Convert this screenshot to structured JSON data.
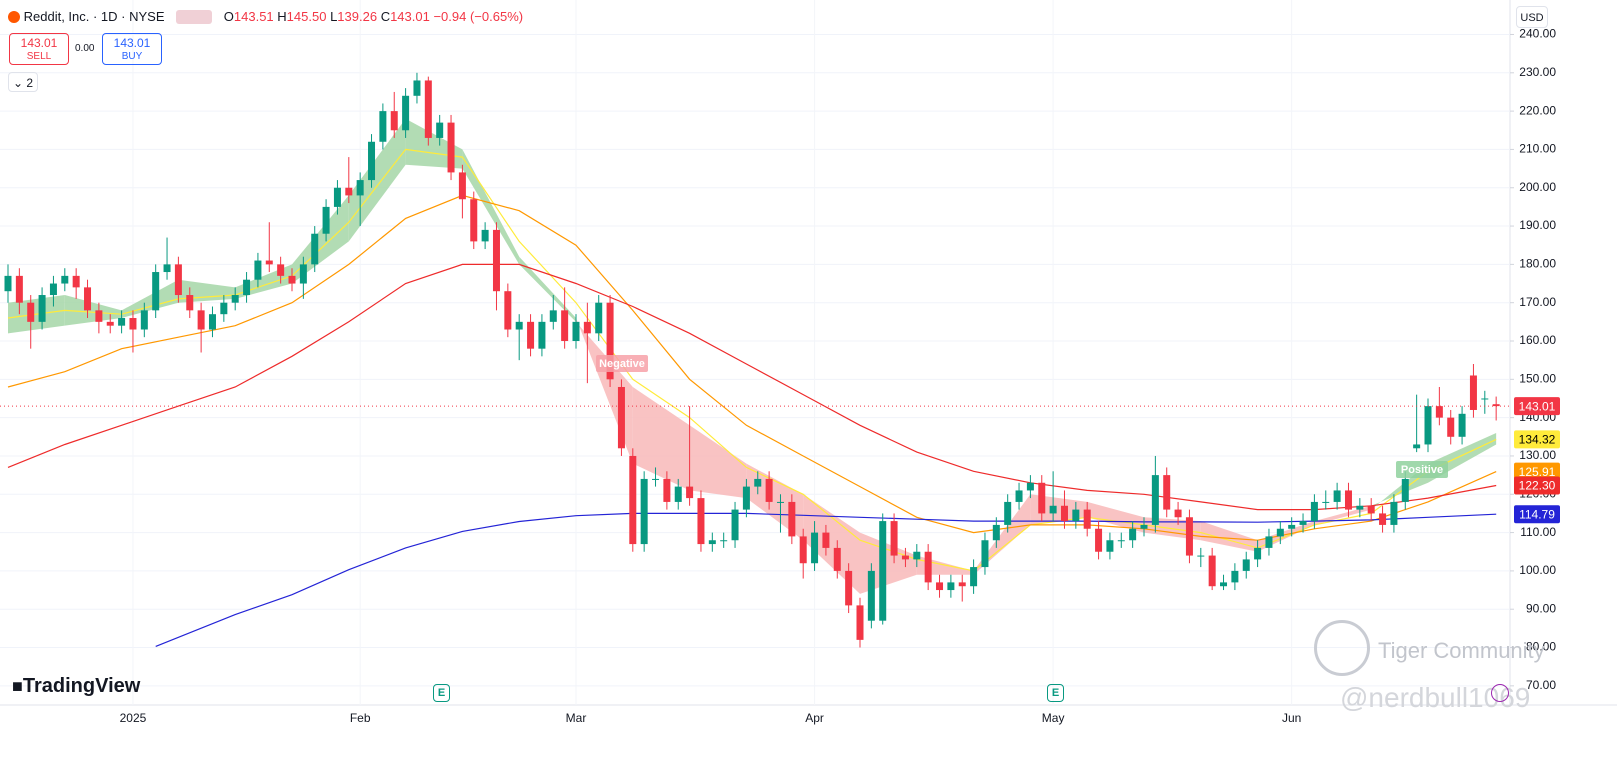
{
  "header": {
    "symbol": "Reddit, Inc. · 1D · NYSE",
    "ohlc": [
      {
        "key": "O",
        "value": "143.51"
      },
      {
        "key": "H",
        "value": "145.50"
      },
      {
        "key": "L",
        "value": "139.26"
      },
      {
        "key": "C",
        "value": "143.01"
      }
    ],
    "change": "−0.94 (−0.65%)",
    "sell_price": "143.01",
    "sell": "SELL",
    "spread": "0.00",
    "buy_price": "143.01",
    "buy": "BUY",
    "indicators": "2",
    "currency": "USD",
    "brand": "TradingView",
    "watermark": "Tiger Community",
    "handle": "@nerdbull1069",
    "earnings": "E"
  },
  "chart_data": {
    "type": "candlestick",
    "title": "Reddit, Inc. · 1D · NYSE",
    "up_color": "#089981",
    "down_color": "#f23645",
    "open": [
      173,
      177,
      170,
      165,
      172,
      175,
      177,
      174,
      168,
      165,
      164,
      166,
      163,
      168,
      178,
      180,
      172,
      168,
      163,
      167,
      170,
      172,
      176,
      181,
      180,
      177,
      175,
      180,
      188,
      195,
      200,
      198,
      202,
      212,
      220,
      215,
      224,
      228,
      213,
      217,
      204,
      197,
      186,
      189,
      173,
      163,
      165,
      158,
      165,
      168,
      160,
      165,
      162,
      170,
      148,
      130,
      107,
      124,
      124,
      118,
      122,
      119,
      107,
      108,
      108,
      116,
      122,
      124,
      118,
      118,
      109,
      102,
      110,
      106,
      100,
      91,
      87,
      87,
      113,
      104,
      103,
      105,
      97,
      95,
      97,
      96,
      101,
      108,
      112,
      118,
      121,
      123,
      115,
      117,
      113,
      116,
      111,
      105,
      108,
      108,
      111,
      112,
      125,
      116,
      114,
      104,
      104,
      96,
      97,
      100,
      103,
      106,
      109,
      111,
      112,
      113,
      118,
      118,
      121,
      116,
      117,
      115,
      112,
      118,
      132,
      133,
      143,
      140,
      135,
      151,
      145,
      143.51
    ],
    "high": [
      180,
      179,
      172,
      174,
      177,
      179,
      179,
      176,
      170,
      167,
      168,
      168,
      170,
      180,
      187,
      182,
      174,
      170,
      169,
      172,
      174,
      178,
      183,
      191,
      182,
      179,
      182,
      190,
      197,
      202,
      208,
      204,
      214,
      222,
      225,
      226,
      230,
      229,
      219,
      219,
      206,
      199,
      191,
      191,
      175,
      167,
      167,
      167,
      172,
      174,
      167,
      170,
      172,
      172,
      150,
      132,
      126,
      127,
      126,
      124,
      143,
      121,
      110,
      110,
      118,
      124,
      126,
      126,
      120,
      120,
      111,
      113,
      112,
      108,
      102,
      93,
      102,
      115,
      115,
      106,
      107,
      107,
      99,
      99,
      99,
      103,
      110,
      114,
      120,
      123,
      125,
      125,
      126,
      121,
      118,
      118,
      113,
      110,
      110,
      113,
      114,
      130,
      127,
      118,
      116,
      106,
      106,
      99,
      102,
      105,
      108,
      111,
      113,
      114,
      115,
      120,
      121,
      123,
      123,
      119,
      119,
      117,
      120,
      126,
      146,
      145,
      148,
      142,
      143,
      154,
      147,
      145.5
    ],
    "low": [
      170,
      167,
      158,
      163,
      169,
      173,
      171,
      166,
      162,
      162,
      162,
      157,
      161,
      166,
      176,
      170,
      166,
      157,
      161,
      165,
      168,
      170,
      174,
      178,
      175,
      173,
      171,
      178,
      186,
      193,
      196,
      190,
      200,
      210,
      213,
      213,
      222,
      211,
      211,
      202,
      192,
      184,
      184,
      168,
      161,
      155,
      156,
      156,
      163,
      158,
      158,
      149,
      160,
      148,
      130,
      105,
      105,
      122,
      116,
      116,
      117,
      105,
      105,
      106,
      106,
      114,
      120,
      116,
      110,
      107,
      98,
      100,
      104,
      98,
      89,
      80,
      85,
      86,
      102,
      101,
      101,
      95,
      93,
      93,
      92,
      94,
      99,
      106,
      110,
      116,
      119,
      113,
      113,
      111,
      111,
      109,
      103,
      103,
      106,
      106,
      109,
      110,
      114,
      112,
      102,
      101,
      95,
      95,
      95,
      98,
      101,
      104,
      107,
      109,
      110,
      111,
      116,
      116,
      114,
      114,
      113,
      110,
      110,
      116,
      131,
      131,
      138,
      133,
      133,
      140,
      141,
      139.26
    ],
    "close": [
      177,
      170,
      165,
      172,
      175,
      177,
      174,
      168,
      165,
      164,
      166,
      163,
      168,
      178,
      180,
      172,
      168,
      163,
      167,
      170,
      172,
      176,
      181,
      180,
      177,
      175,
      180,
      188,
      195,
      200,
      198,
      202,
      212,
      220,
      215,
      224,
      228,
      213,
      217,
      204,
      197,
      186,
      189,
      173,
      163,
      165,
      158,
      165,
      168,
      160,
      165,
      162,
      170,
      150,
      132,
      107,
      124,
      124,
      118,
      122,
      119,
      107,
      108,
      108,
      116,
      122,
      124,
      118,
      118,
      109,
      102,
      110,
      106,
      100,
      91,
      82,
      100,
      113,
      104,
      103,
      105,
      97,
      95,
      97,
      96,
      101,
      108,
      112,
      118,
      121,
      123,
      115,
      117,
      113,
      116,
      111,
      105,
      108,
      108,
      111,
      112,
      125,
      116,
      114,
      104,
      104,
      96,
      97,
      100,
      103,
      106,
      109,
      111,
      112,
      113,
      118,
      118,
      121,
      116,
      117,
      115,
      112,
      118,
      124,
      133,
      143,
      140,
      135,
      141,
      142,
      145,
      143.01
    ],
    "ribbon": {
      "x": [
        0,
        5,
        10,
        15,
        20,
        25,
        30,
        35,
        40,
        45,
        50,
        55,
        60,
        65,
        70,
        75,
        80,
        85,
        90,
        95,
        100,
        105,
        110,
        115,
        120,
        125,
        131
      ],
      "fast": [
        170,
        172,
        168,
        176,
        174,
        180,
        198,
        218,
        210,
        182,
        166,
        128,
        121,
        119,
        108,
        94,
        99,
        99,
        112,
        114,
        110,
        108,
        105,
        112,
        116,
        128,
        136
      ],
      "slow": [
        162,
        164,
        166,
        170,
        171,
        175,
        186,
        206,
        205,
        180,
        165,
        148,
        138,
        128,
        120,
        110,
        104,
        100,
        120,
        118,
        114,
        113,
        108,
        113,
        117,
        123,
        133
      ],
      "up_color": "#a5d6a7",
      "down_color": "#f8b9b9"
    },
    "series": [
      {
        "color": "#ffeb3b",
        "tag": "134.32",
        "x": [
          0,
          5,
          10,
          15,
          20,
          25,
          30,
          35,
          40,
          45,
          50,
          55,
          60,
          65,
          70,
          75,
          80,
          85,
          90,
          95,
          100,
          105,
          110,
          115,
          120,
          125,
          131
        ],
        "values": [
          166,
          168,
          167,
          171,
          172,
          177,
          191,
          210,
          208,
          186,
          170,
          150,
          140,
          127,
          120,
          108,
          103,
          100,
          112,
          114,
          112,
          110,
          106,
          112,
          115,
          126,
          134.32
        ]
      },
      {
        "color": "#ff9800",
        "tag": "125.91",
        "x": [
          0,
          5,
          10,
          15,
          20,
          25,
          30,
          35,
          40,
          45,
          50,
          55,
          60,
          65,
          70,
          75,
          80,
          85,
          90,
          95,
          100,
          105,
          110,
          115,
          120,
          125,
          131
        ],
        "values": [
          148,
          152,
          158,
          161,
          164,
          170,
          180,
          192,
          198,
          194,
          185,
          168,
          150,
          138,
          130,
          122,
          114,
          110,
          112,
          112,
          111,
          109,
          108,
          111,
          113,
          118,
          125.91
        ]
      },
      {
        "color": "#ee2b2b",
        "tag": "122.30",
        "x": [
          0,
          5,
          10,
          15,
          20,
          25,
          30,
          35,
          40,
          45,
          50,
          55,
          60,
          65,
          70,
          75,
          80,
          85,
          90,
          95,
          100,
          105,
          110,
          115,
          120,
          125,
          131
        ],
        "values": [
          127,
          133,
          138,
          143,
          148,
          156,
          165,
          175,
          180,
          180,
          175,
          169,
          162,
          154,
          146,
          138,
          131,
          126,
          123,
          121,
          120,
          118,
          116,
          116,
          117,
          119,
          122.3
        ]
      },
      {
        "color": "#2424d6",
        "tag": "114.79",
        "x": [
          13,
          20,
          25,
          30,
          35,
          40,
          45,
          50,
          55,
          60,
          65,
          70,
          75,
          80,
          85,
          90,
          95,
          100,
          105,
          110,
          115,
          120,
          125,
          131
        ],
        "values": [
          80.3,
          88.6,
          93.8,
          100.3,
          106,
          110.3,
          112.9,
          114.4,
          115,
          115,
          115,
          114.5,
          114,
          113.5,
          113,
          113,
          113,
          112.8,
          112.8,
          112.7,
          113,
          113.3,
          114,
          114.79
        ]
      }
    ],
    "annotations": [
      "Negative",
      "Positive"
    ],
    "ylim": [
      65,
      249
    ],
    "yticks": [
      {
        "value": 70,
        "label": "70.00"
      },
      {
        "value": 80,
        "label": "80.00"
      },
      {
        "value": 90,
        "label": "90.00"
      },
      {
        "value": 100,
        "label": "100.00"
      },
      {
        "value": 110,
        "label": "110.00"
      },
      {
        "value": 120,
        "label": "120.00"
      },
      {
        "value": 130,
        "label": "130.00"
      },
      {
        "value": 140,
        "label": "140.00"
      },
      {
        "value": 150,
        "label": "150.00"
      },
      {
        "value": 160,
        "label": "160.00"
      },
      {
        "value": 170,
        "label": "170.00"
      },
      {
        "value": 180,
        "label": "180.00"
      },
      {
        "value": 190,
        "label": "190.00"
      },
      {
        "value": 200,
        "label": "200.00"
      },
      {
        "value": 210,
        "label": "210.00"
      },
      {
        "value": 220,
        "label": "220.00"
      },
      {
        "value": 230,
        "label": "230.00"
      },
      {
        "value": 240,
        "label": "240.00"
      }
    ],
    "xticks": [
      {
        "value": 11,
        "label": "2025"
      },
      {
        "value": 31,
        "label": "Feb"
      },
      {
        "value": 50,
        "label": "Mar"
      },
      {
        "value": 71,
        "label": "Apr"
      },
      {
        "value": 92,
        "label": "May"
      },
      {
        "value": 113,
        "label": "Jun"
      }
    ],
    "grid": true
  }
}
